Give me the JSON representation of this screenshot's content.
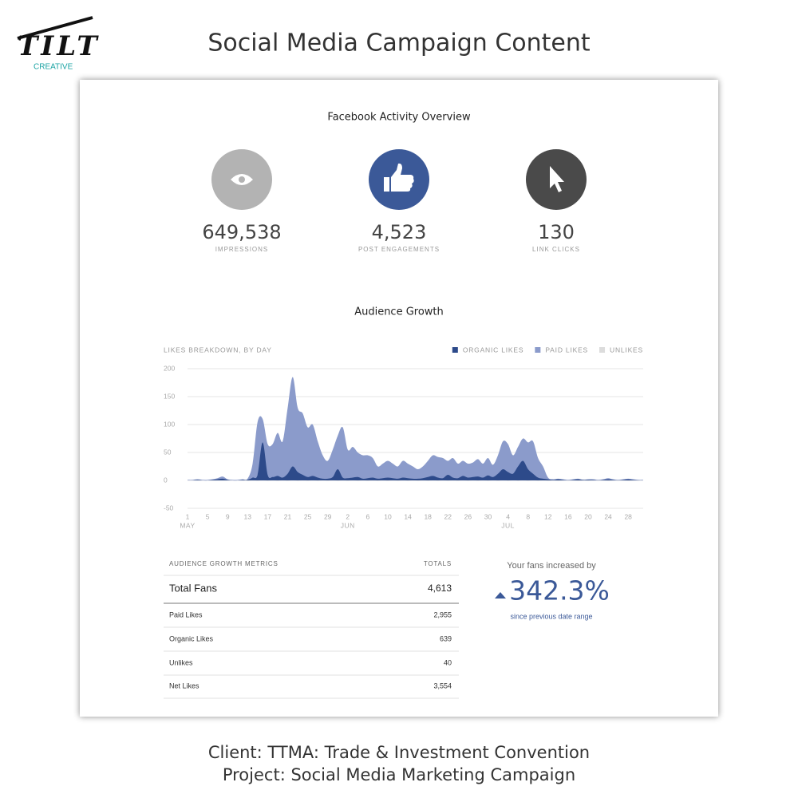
{
  "header": {
    "logo": "TILT",
    "logo_sub": "CREATIVE",
    "title": "Social Media Campaign Content"
  },
  "overview": {
    "title": "Facebook Activity Overview",
    "stats": [
      {
        "value": "649,538",
        "label": "IMPRESSIONS"
      },
      {
        "value": "4,523",
        "label": "POST ENGAGEMENTS"
      },
      {
        "value": "130",
        "label": "LINK CLICKS"
      }
    ]
  },
  "chart_data": {
    "type": "area",
    "title": "Audience Growth",
    "subtitle": "LIKES BREAKDOWN, BY DAY",
    "x": [
      0,
      1,
      2,
      3,
      4,
      5,
      6,
      7,
      8,
      9,
      10,
      11,
      12,
      13,
      14,
      15,
      16,
      17,
      18,
      19,
      20,
      21,
      22,
      23,
      24,
      25,
      26,
      27,
      28,
      29,
      30,
      31,
      32,
      33,
      34,
      35,
      36,
      37,
      38,
      39,
      40,
      41,
      42,
      43,
      44,
      45,
      46,
      47,
      48,
      49,
      50,
      51,
      52,
      53,
      54,
      55,
      56,
      57,
      58,
      59,
      60,
      61,
      62,
      63,
      64,
      65,
      66,
      67,
      68,
      69,
      70,
      71,
      72,
      73,
      74,
      75,
      76,
      77,
      78,
      79,
      80,
      81,
      82,
      83,
      84,
      85,
      86,
      87,
      88,
      89,
      90,
      91
    ],
    "xlim": [
      0,
      91
    ],
    "xticks": [
      {
        "value": 0,
        "label": "1"
      },
      {
        "value": 4,
        "label": "5"
      },
      {
        "value": 8,
        "label": "9"
      },
      {
        "value": 12,
        "label": "13"
      },
      {
        "value": 16,
        "label": "17"
      },
      {
        "value": 20,
        "label": "21"
      },
      {
        "value": 24,
        "label": "25"
      },
      {
        "value": 28,
        "label": "29"
      },
      {
        "value": 32,
        "label": "2"
      },
      {
        "value": 36,
        "label": "6"
      },
      {
        "value": 40,
        "label": "10"
      },
      {
        "value": 44,
        "label": "14"
      },
      {
        "value": 48,
        "label": "18"
      },
      {
        "value": 52,
        "label": "22"
      },
      {
        "value": 56,
        "label": "26"
      },
      {
        "value": 60,
        "label": "30"
      },
      {
        "value": 64,
        "label": "4"
      },
      {
        "value": 68,
        "label": "8"
      },
      {
        "value": 72,
        "label": "12"
      },
      {
        "value": 76,
        "label": "16"
      },
      {
        "value": 80,
        "label": "20"
      },
      {
        "value": 84,
        "label": "24"
      },
      {
        "value": 88,
        "label": "28"
      }
    ],
    "x_month_labels": [
      {
        "value": 0,
        "label": "MAY"
      },
      {
        "value": 32,
        "label": "JUN"
      },
      {
        "value": 64,
        "label": "JUL"
      }
    ],
    "ylim": [
      -50,
      200
    ],
    "yticks": [
      -50,
      0,
      50,
      100,
      150,
      200
    ],
    "grid": true,
    "legend": "top-right",
    "series": [
      {
        "name": "ORGANIC LIKES",
        "color": "#2d4a8a",
        "values": [
          0,
          0,
          1,
          0,
          0,
          1,
          2,
          3,
          1,
          0,
          0,
          1,
          1,
          5,
          10,
          68,
          10,
          6,
          8,
          5,
          12,
          25,
          15,
          10,
          6,
          8,
          5,
          3,
          3,
          6,
          20,
          5,
          4,
          5,
          6,
          3,
          4,
          5,
          3,
          4,
          5,
          4,
          3,
          5,
          4,
          3,
          3,
          4,
          6,
          8,
          5,
          4,
          10,
          5,
          4,
          8,
          5,
          6,
          7,
          5,
          9,
          6,
          12,
          20,
          15,
          12,
          25,
          35,
          20,
          12,
          5,
          3,
          2,
          1,
          2,
          1,
          0,
          1,
          2,
          1,
          1,
          1,
          0,
          1,
          2,
          1,
          0,
          1,
          2,
          1,
          0,
          0
        ]
      },
      {
        "name": "PAID LIKES",
        "color": "#8b9bcb",
        "values": [
          1,
          1,
          2,
          1,
          1,
          2,
          4,
          7,
          2,
          1,
          1,
          2,
          3,
          30,
          105,
          110,
          65,
          65,
          85,
          70,
          130,
          185,
          130,
          120,
          95,
          100,
          70,
          45,
          35,
          55,
          80,
          95,
          55,
          60,
          50,
          45,
          45,
          40,
          25,
          30,
          35,
          30,
          25,
          35,
          30,
          25,
          20,
          25,
          35,
          45,
          42,
          40,
          35,
          40,
          30,
          35,
          30,
          32,
          38,
          30,
          40,
          28,
          45,
          70,
          65,
          45,
          60,
          75,
          68,
          70,
          40,
          25,
          5,
          2,
          3,
          2,
          1,
          2,
          3,
          1,
          2,
          2,
          1,
          2,
          4,
          2,
          1,
          2,
          3,
          2,
          1,
          1
        ]
      },
      {
        "name": "UNLIKES",
        "color": "#dcdcdc",
        "values": [
          0,
          0,
          0,
          0,
          0,
          0,
          0,
          0,
          0,
          0,
          0,
          0,
          -1,
          0,
          -1,
          0,
          -1,
          0,
          -1,
          0,
          -1,
          0,
          -1,
          0,
          -1,
          0,
          -1,
          0,
          -1,
          0,
          -1,
          0,
          -1,
          0,
          -1,
          0,
          -1,
          0,
          -1,
          0,
          -1,
          0,
          -1,
          0,
          -1,
          0,
          -1,
          0,
          -1,
          0,
          -1,
          0,
          -1,
          0,
          -1,
          0,
          -1,
          0,
          -1,
          0,
          -1,
          0,
          -1,
          0,
          -1,
          0,
          -1,
          0,
          -1,
          0,
          -1,
          0,
          -1,
          0,
          -1,
          0,
          -1,
          0,
          -1,
          0,
          -1,
          0,
          -1,
          0,
          -1,
          0,
          -1,
          0,
          -1,
          0,
          -1,
          0
        ]
      }
    ]
  },
  "table": {
    "header": [
      "AUDIENCE GROWTH METRICS",
      "TOTALS"
    ],
    "rows": [
      [
        "Total Fans",
        "4,613"
      ],
      [
        "Paid Likes",
        "2,955"
      ],
      [
        "Organic Likes",
        "639"
      ],
      [
        "Unlikes",
        "40"
      ],
      [
        "Net Likes",
        "3,554"
      ]
    ]
  },
  "summary": {
    "lead": "Your fans increased by",
    "value": "342.3%",
    "note": "since previous date range"
  },
  "footer": {
    "client": "Client: TTMA: Trade & Investment Convention",
    "project": "Project: Social Media Marketing Campaign"
  }
}
